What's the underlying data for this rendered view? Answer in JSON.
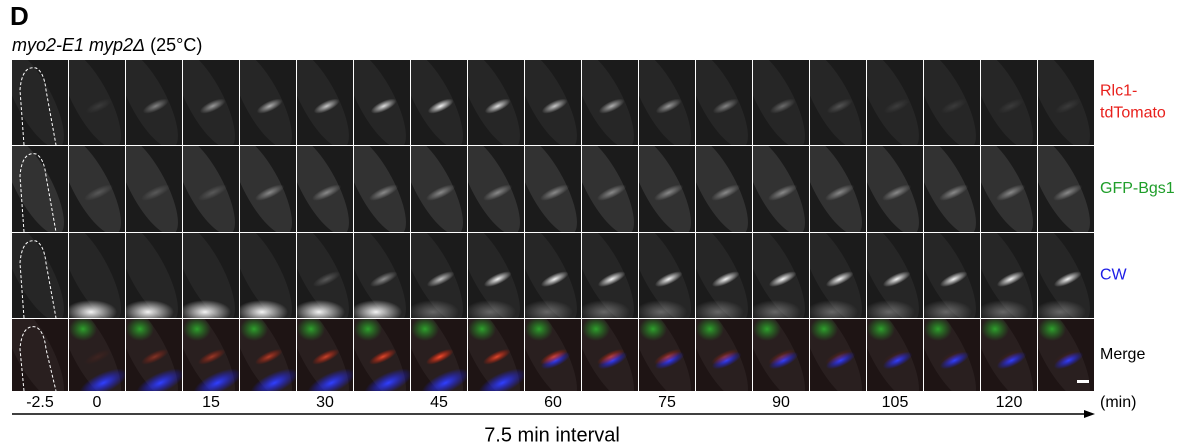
{
  "panel_label": "D",
  "subtitle": {
    "strain": "myo2-E1 myp2Δ",
    "condition": "(25°C)"
  },
  "channels": [
    {
      "lines": [
        "Rlc1-",
        "tdTomato"
      ],
      "color": "#e8201c"
    },
    {
      "lines": [
        "GFP-Bgs1"
      ],
      "color": "#1f9e2a"
    },
    {
      "lines": [
        "CW"
      ],
      "color": "#1c1ce6"
    },
    {
      "lines": [
        "Merge"
      ],
      "color": "#000000"
    }
  ],
  "time_labels": [
    "-2.5",
    "0",
    "15",
    "30",
    "45",
    "60",
    "75",
    "90",
    "105",
    "120"
  ],
  "time_unit": "(min)",
  "interval_label": "7.5 min interval"
}
